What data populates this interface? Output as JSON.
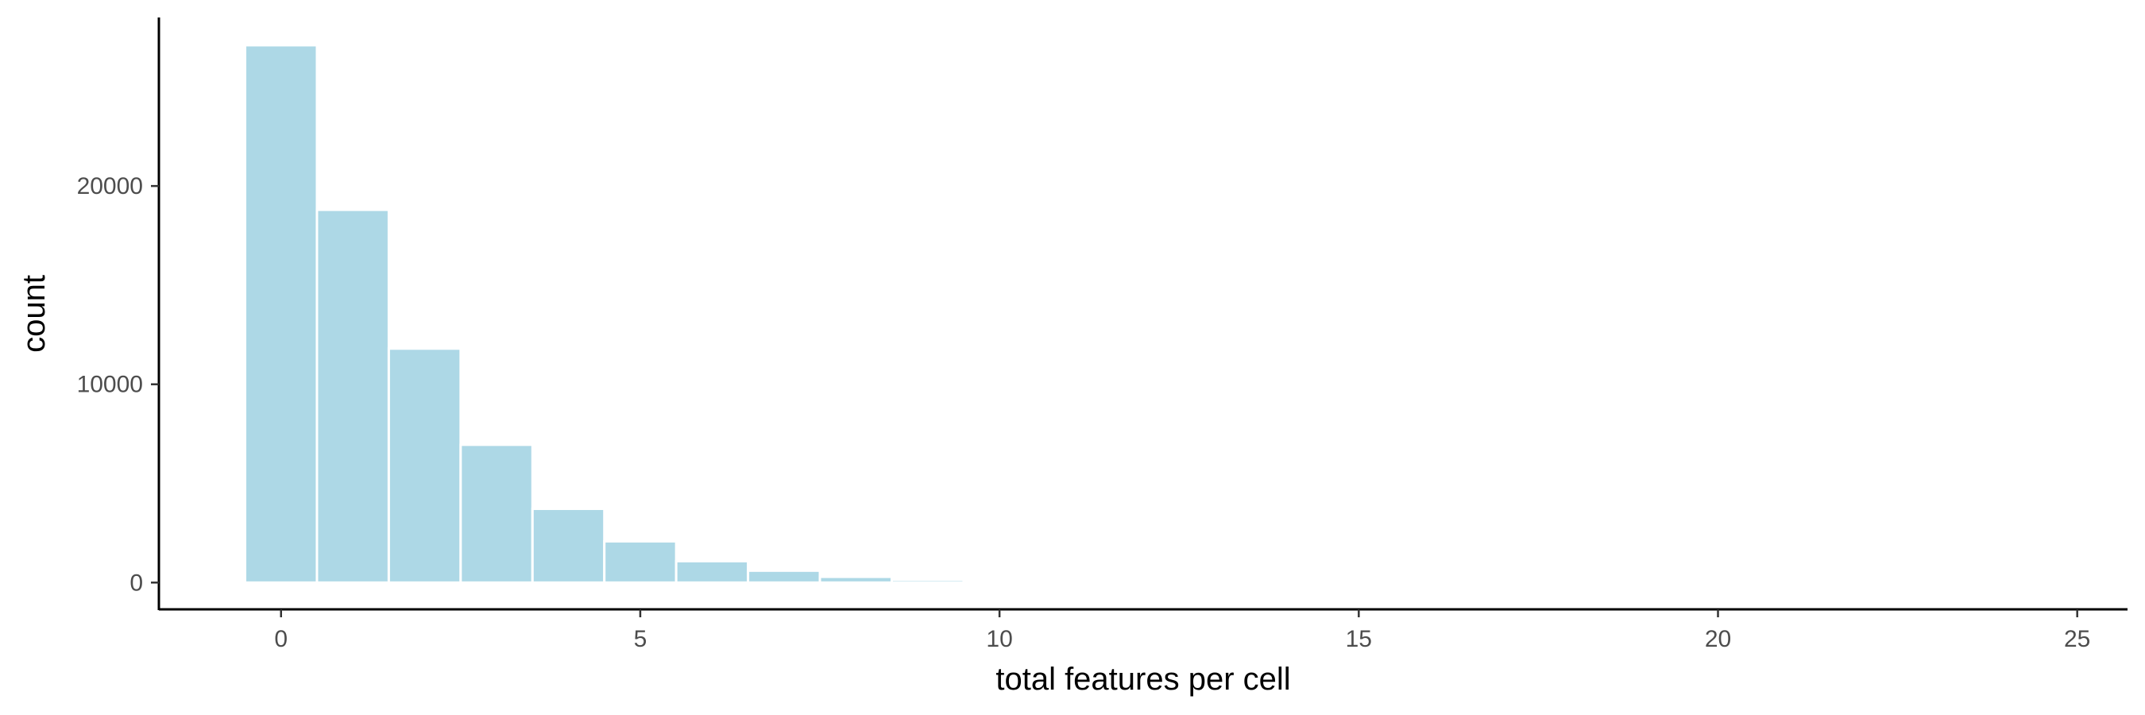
{
  "chart_data": {
    "type": "bar",
    "xlabel": "total features per cell",
    "ylabel": "count",
    "x": [
      0,
      1,
      2,
      3,
      4,
      5,
      6,
      7,
      8,
      9
    ],
    "values": [
      27100,
      18800,
      11800,
      6950,
      3720,
      2080,
      1080,
      600,
      290,
      140
    ],
    "bin_width": 1,
    "xlim": [
      -1.7,
      25.7
    ],
    "ylim": [
      -1350,
      28500
    ],
    "x_ticks": [
      0,
      5,
      10,
      15,
      20,
      25
    ],
    "y_ticks": [
      0,
      10000,
      20000
    ],
    "grid": false,
    "bar_color": "#add8e6",
    "bar_edge_color": "#ffffff"
  }
}
